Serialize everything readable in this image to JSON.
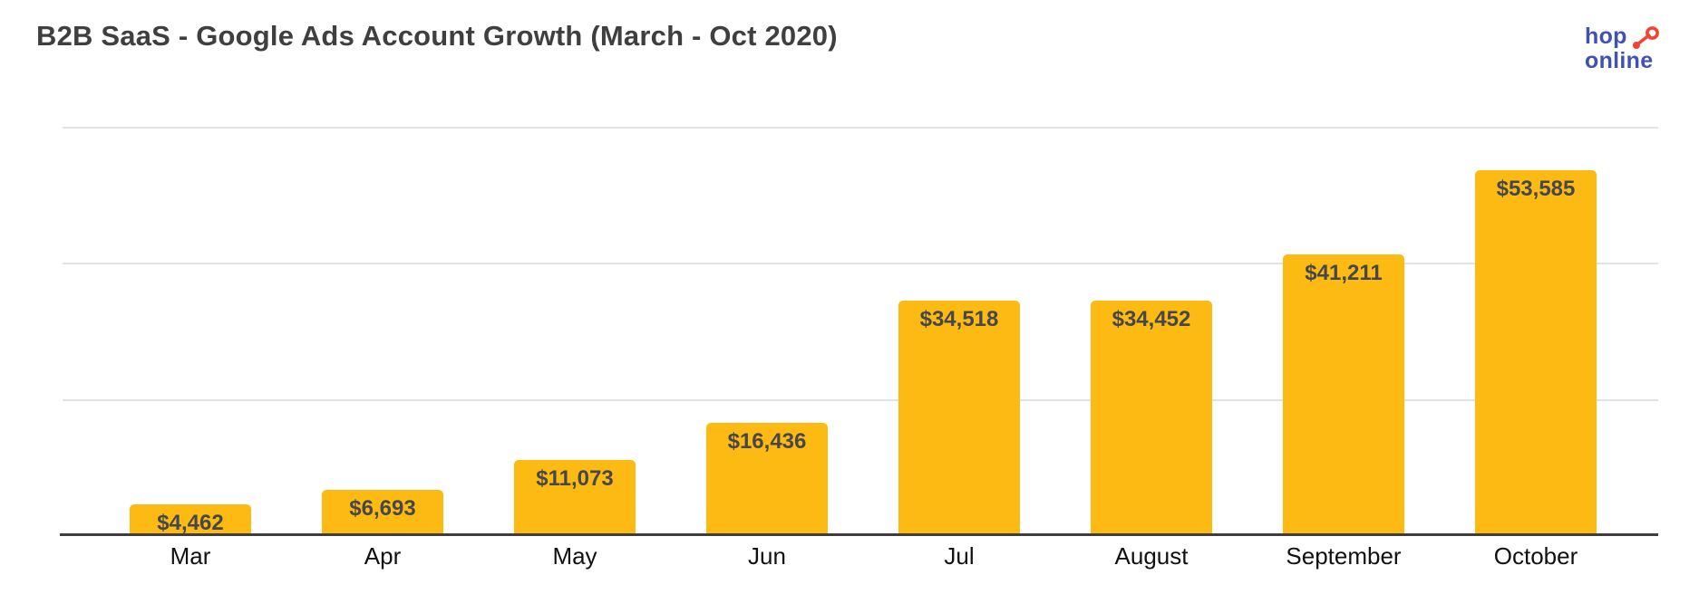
{
  "header": {
    "title": "B2B SaaS - Google Ads Account Growth (March - Oct 2020)"
  },
  "logo": {
    "line1": "hop",
    "line2": "online",
    "text_color": "#3f51b5",
    "icon_color": "#f2432f",
    "icon": "hop-dot-and-ring-icon"
  },
  "chart_data": {
    "type": "bar",
    "title": "B2B SaaS - Google Ads Account Growth (March - Oct 2020)",
    "categories": [
      "Mar",
      "Apr",
      "May",
      "Jun",
      "Jul",
      "August",
      "September",
      "October"
    ],
    "values": [
      4462,
      6693,
      11073,
      16436,
      34518,
      34452,
      41211,
      53585
    ],
    "value_labels": [
      "$4,462",
      "$6,693",
      "$11,073",
      "$16,436",
      "$34,518",
      "$34,452",
      "$41,211",
      "$53,585"
    ],
    "xlabel": "",
    "ylabel": "",
    "ylim": [
      0,
      60000
    ],
    "gridline_values": [
      20000,
      40000,
      60000
    ],
    "grid": "horizontal-light",
    "legend": "none",
    "y_tick_labels_visible": false,
    "bar_color": "#fcba13",
    "value_label_color": "#45474c",
    "axis_color": "#3e3e3e",
    "gridline_color": "#e3e3e3"
  }
}
